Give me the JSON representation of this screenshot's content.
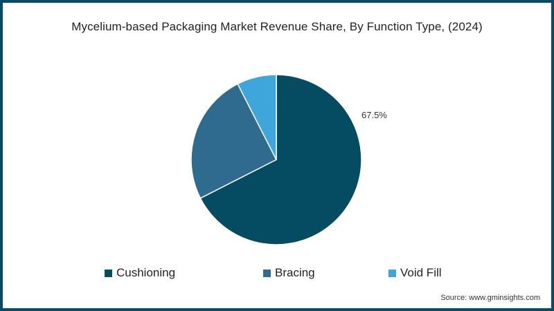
{
  "chart_data": {
    "type": "pie",
    "title": "Mycelium-based Packaging Market Revenue Share, By Function Type, (2024)",
    "categories": [
      "Cushioning",
      "Bracing",
      "Void Fill"
    ],
    "values": [
      67.5,
      25.0,
      7.5
    ],
    "colors": [
      "#054b62",
      "#2e6b8e",
      "#3fa6dc"
    ],
    "data_labels": [
      {
        "category": "Cushioning",
        "text": "67.5%"
      }
    ],
    "start_angle": "12 o'clock",
    "direction": "clockwise",
    "legend_position": "bottom",
    "source": "Source: www.gminsights.com"
  },
  "title": "Mycelium-based Packaging Market Revenue Share, By Function Type, (2024)",
  "labels": {
    "cushioning_pct": "67.5%"
  },
  "legend": [
    {
      "label": "Cushioning",
      "color": "#054b62"
    },
    {
      "label": "Bracing",
      "color": "#2e6b8e"
    },
    {
      "label": "Void Fill",
      "color": "#3fa6dc"
    }
  ],
  "source": "Source: www.gminsights.com"
}
